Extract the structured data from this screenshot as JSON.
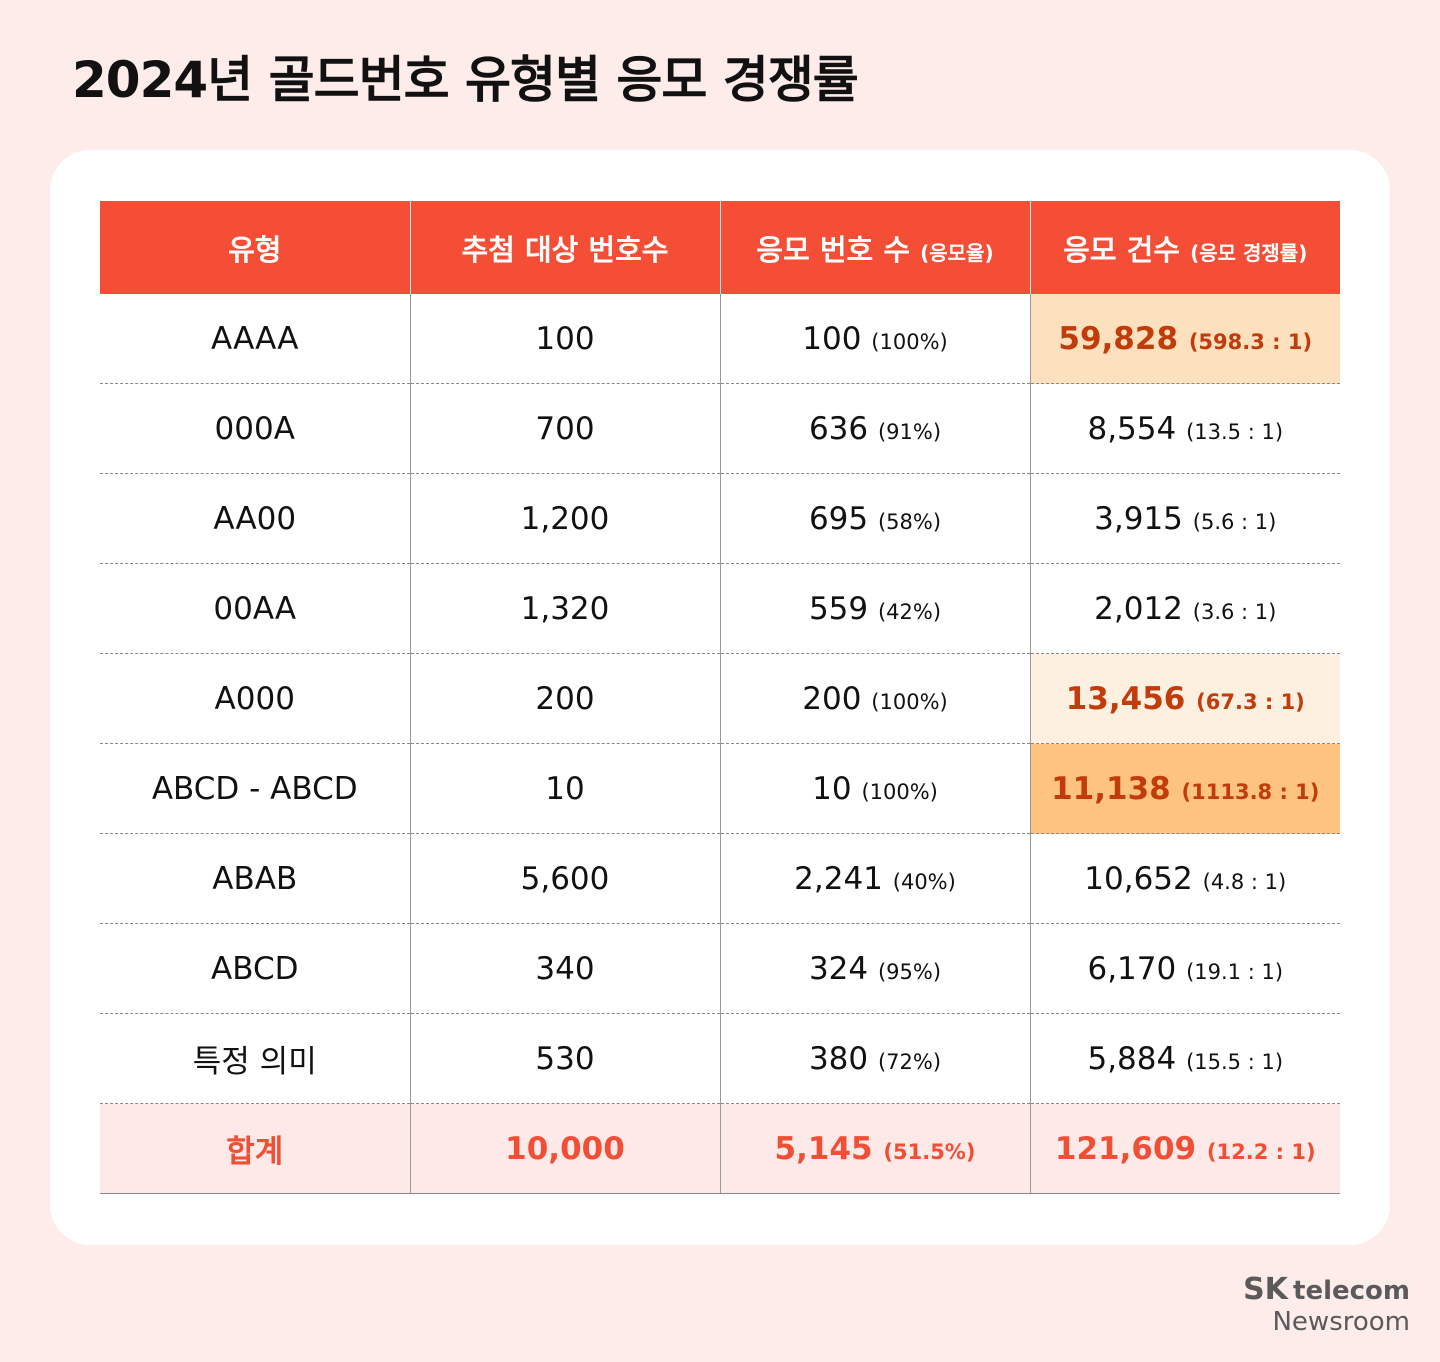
{
  "title": "2024년 골드번호 유형별 응모 경쟁률",
  "chart_data": {
    "type": "table",
    "columns": [
      {
        "label": "유형",
        "sub": ""
      },
      {
        "label": "추첨 대상 번호수",
        "sub": ""
      },
      {
        "label": "응모 번호 수",
        "sub": "(응모율)"
      },
      {
        "label": "응모 건수",
        "sub": "(응모 경쟁률)"
      }
    ],
    "rows": [
      {
        "type": "AAAA",
        "targets": "100",
        "applied": "100",
        "rate": "(100%)",
        "count": "59,828",
        "ratio": "(598.3 : 1)",
        "highlight": "hl1"
      },
      {
        "type": "000A",
        "targets": "700",
        "applied": "636",
        "rate": "(91%)",
        "count": "8,554",
        "ratio": "(13.5 : 1)",
        "highlight": ""
      },
      {
        "type": "AA00",
        "targets": "1,200",
        "applied": "695",
        "rate": "(58%)",
        "count": "3,915",
        "ratio": "(5.6 : 1)",
        "highlight": ""
      },
      {
        "type": "00AA",
        "targets": "1,320",
        "applied": "559",
        "rate": "(42%)",
        "count": "2,012",
        "ratio": "(3.6 : 1)",
        "highlight": ""
      },
      {
        "type": "A000",
        "targets": "200",
        "applied": "200",
        "rate": "(100%)",
        "count": "13,456",
        "ratio": "(67.3 : 1)",
        "highlight": "hl2"
      },
      {
        "type": "ABCD - ABCD",
        "targets": "10",
        "applied": "10",
        "rate": "(100%)",
        "count": "11,138",
        "ratio": "(1113.8 : 1)",
        "highlight": "hl3"
      },
      {
        "type": "ABAB",
        "targets": "5,600",
        "applied": "2,241",
        "rate": "(40%)",
        "count": "10,652",
        "ratio": "(4.8 : 1)",
        "highlight": ""
      },
      {
        "type": "ABCD",
        "targets": "340",
        "applied": "324",
        "rate": "(95%)",
        "count": "6,170",
        "ratio": "(19.1 : 1)",
        "highlight": ""
      },
      {
        "type": "특정 의미",
        "targets": "530",
        "applied": "380",
        "rate": "(72%)",
        "count": "5,884",
        "ratio": "(15.5 : 1)",
        "highlight": ""
      }
    ],
    "total": {
      "type": "합계",
      "targets": "10,000",
      "applied": "5,145",
      "rate": "(51.5%)",
      "count": "121,609",
      "ratio": "(12.2 : 1)"
    }
  },
  "brand": {
    "sk": "SK",
    "telecom": "telecom",
    "newsroom": "Newsroom"
  }
}
